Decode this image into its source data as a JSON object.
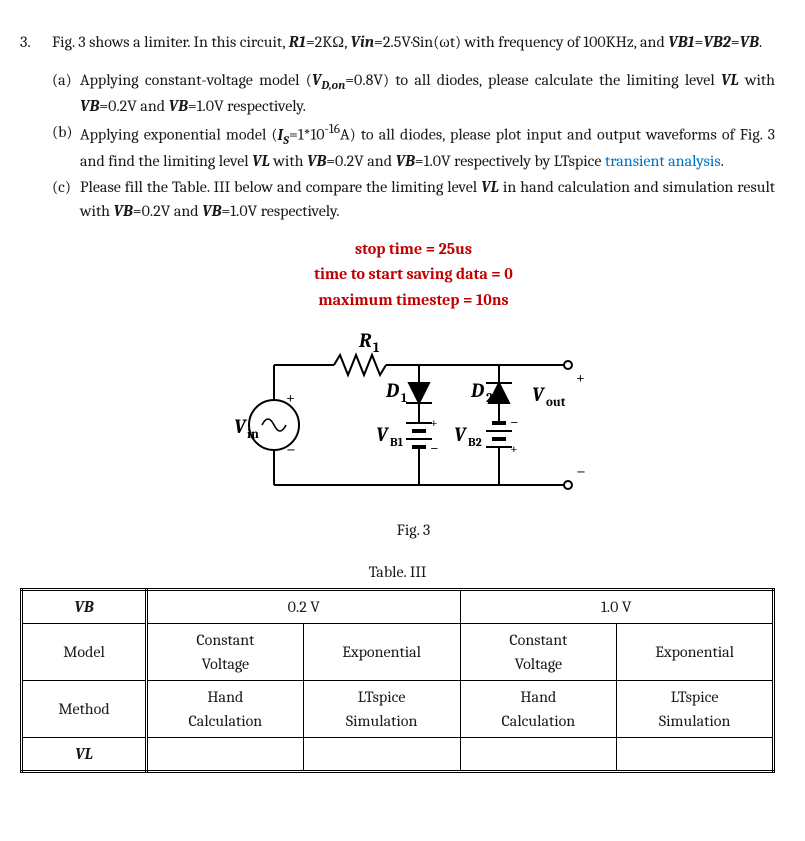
{
  "question": {
    "number": "3.",
    "intro_html": "Fig. 3 shows a limiter. In this circuit, <b><i>R1</i></b>=2KΩ, <b><i>Vin</i></b>=2.5V·Sin(ωt) with frequency of 100KHz, and <b><i>VB1</i></b>=<b><i>VB2</i></b>=<b><i>VB</i></b>.",
    "parts": [
      {
        "tag": "(a)",
        "html": "Applying constant-voltage model (<b><i>V<sub>D,on</sub></i></b>=0.8V) to all diodes, please calculate the limiting level <b><i>VL</i></b> with <b><i>VB</i></b>=0.2V and <b><i>VB</i></b>=1.0V respectively."
      },
      {
        "tag": "(b)",
        "html": "Applying exponential model (<b><i>I<sub>S</sub></i></b>=1*10<sup>-16</sup>A) to all diodes, please plot input and output waveforms of Fig. 3 and find the limiting level <b><i>VL</i></b> with <b><i>VB</i></b>=0.2V and <b><i>VB</i></b>=1.0V respectively by LTspice <span class='blue'>transient analysis</span>."
      },
      {
        "tag": "(c)",
        "html": "Please fill the Table. III below and compare the limiting level <b><i>VL</i></b> in hand calculation and simulation result with <b><i>VB</i></b>=0.2V and <b><i>VB</i></b>=1.0V respectively."
      }
    ]
  },
  "sim_params": {
    "line1": "stop time = 25us",
    "line2": "time to start saving data = 0",
    "line3": "maximum timestep = 10ns"
  },
  "circuit": {
    "R1": "R₁",
    "D1": "D₁",
    "D2": "D₂",
    "Vin": "V",
    "Vin_sub": "in",
    "Vout": "V",
    "Vout_sub": "out",
    "VB1": "V",
    "VB1_sub": "B1",
    "VB2": "V",
    "VB2_sub": "B2",
    "caption": "Fig. 3"
  },
  "table": {
    "caption": "Table. III",
    "headers": {
      "vb": "VB",
      "vb1": "0.2 V",
      "vb2": "1.0 V",
      "model": "Model",
      "cv": "Constant Voltage",
      "exp": "Exponential",
      "method": "Method",
      "hand": "Hand Calculation",
      "lts": "LTspice Simulation",
      "vl": "VL"
    }
  }
}
